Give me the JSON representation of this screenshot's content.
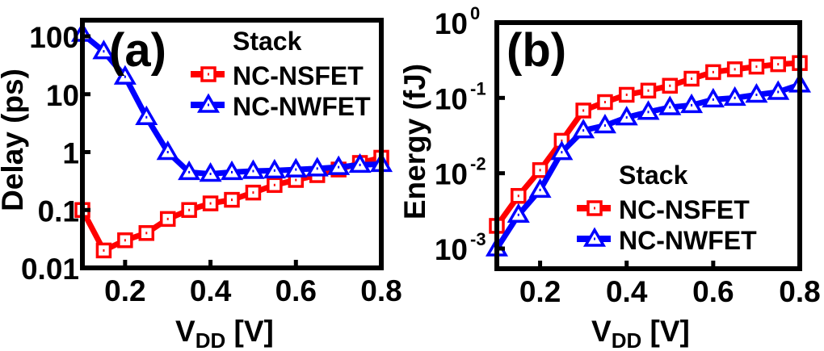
{
  "chart_data": [
    {
      "type": "line",
      "panel_label": "(a)",
      "xlabel_main": "V",
      "xlabel_sub": "DD",
      "xlabel_unit": " [V]",
      "ylabel": "Delay (ps)",
      "yscale": "log",
      "xlim": [
        0.1,
        0.8
      ],
      "ylim": [
        0.01,
        190
      ],
      "xticks": [
        0.2,
        0.4,
        0.6,
        0.8
      ],
      "xtick_labels": [
        "0.2",
        "0.4",
        "0.6",
        "0.8"
      ],
      "yticks": [
        100,
        10,
        1,
        0.1,
        0.01
      ],
      "ytick_labels": [
        "100",
        "10",
        "1",
        "0.1",
        "0.01"
      ],
      "legend_title": "Stack",
      "legend_position": "top-right",
      "x": [
        0.1,
        0.15,
        0.2,
        0.25,
        0.3,
        0.35,
        0.4,
        0.45,
        0.5,
        0.55,
        0.6,
        0.65,
        0.7,
        0.75,
        0.8
      ],
      "series": [
        {
          "name": "NC-NSFET",
          "color": "#ff0000",
          "marker": "square",
          "values": [
            0.1,
            0.02,
            0.03,
            0.04,
            0.07,
            0.1,
            0.13,
            0.15,
            0.2,
            0.27,
            0.33,
            0.4,
            0.5,
            0.65,
            0.8
          ]
        },
        {
          "name": "NC-NWFET",
          "color": "#0000ff",
          "marker": "triangle",
          "values": [
            110,
            55,
            20,
            4,
            1,
            0.45,
            0.42,
            0.45,
            0.47,
            0.48,
            0.5,
            0.52,
            0.55,
            0.6,
            0.62
          ]
        }
      ]
    },
    {
      "type": "line",
      "panel_label": "(b)",
      "xlabel_main": "V",
      "xlabel_sub": "DD",
      "xlabel_unit": " [V]",
      "ylabel": "Energy (fJ)",
      "yscale": "log",
      "xlim": [
        0.1,
        0.8
      ],
      "ylim": [
        0.00054,
        1
      ],
      "xticks": [
        0.2,
        0.4,
        0.6,
        0.8
      ],
      "xtick_labels": [
        "0.2",
        "0.4",
        "0.6",
        "0.8"
      ],
      "yticks": [
        1,
        0.1,
        0.01,
        0.001
      ],
      "ytick_bases": [
        "10",
        "10",
        "10",
        "10"
      ],
      "ytick_exponents": [
        "0",
        "-1",
        "-2",
        "-3"
      ],
      "legend_title": "Stack",
      "legend_position": "bottom-right",
      "x": [
        0.1,
        0.15,
        0.2,
        0.25,
        0.3,
        0.35,
        0.4,
        0.45,
        0.5,
        0.55,
        0.6,
        0.65,
        0.7,
        0.75,
        0.8
      ],
      "series": [
        {
          "name": "NC-NSFET",
          "color": "#ff0000",
          "marker": "square",
          "values": [
            0.002,
            0.005,
            0.011,
            0.027,
            0.068,
            0.088,
            0.11,
            0.125,
            0.145,
            0.18,
            0.22,
            0.24,
            0.26,
            0.28,
            0.29
          ]
        },
        {
          "name": "NC-NWFET",
          "color": "#0000ff",
          "marker": "triangle",
          "values": [
            0.001,
            0.0028,
            0.006,
            0.019,
            0.037,
            0.043,
            0.055,
            0.065,
            0.075,
            0.08,
            0.095,
            0.1,
            0.11,
            0.12,
            0.15
          ]
        }
      ]
    }
  ]
}
